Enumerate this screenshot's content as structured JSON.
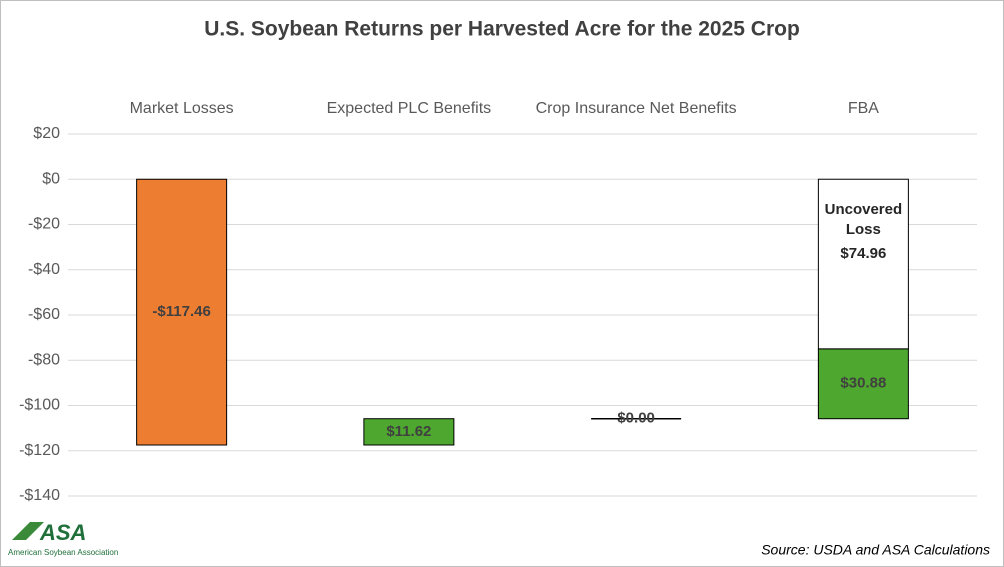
{
  "chart_data": {
    "type": "waterfall",
    "title": "U.S. Soybean Returns per Harvested Acre for the 2025 Crop",
    "categories": [
      "Market Losses",
      "Expected PLC Benefits",
      "Crop Insurance Net Benefits",
      "FBA"
    ],
    "values": [
      -117.46,
      11.62,
      0,
      30.88
    ],
    "value_labels": [
      "-$117.46",
      "$11.62",
      "$0.00",
      "$30.88"
    ],
    "colors": [
      "#ed7d31",
      "#4ea72e",
      "#4ea72e",
      "#4ea72e"
    ],
    "remainder": {
      "name": "Uncovered Loss",
      "value": 74.96,
      "value_label": "$74.96",
      "color": "#ffffff"
    },
    "ylim": [
      -140,
      20
    ],
    "yticks": [
      {
        "value": 20,
        "label": "$20"
      },
      {
        "value": 0,
        "label": "$0"
      },
      {
        "value": -20,
        "label": "-$20"
      },
      {
        "value": -40,
        "label": "-$40"
      },
      {
        "value": -60,
        "label": "-$60"
      },
      {
        "value": -80,
        "label": "-$80"
      },
      {
        "value": -100,
        "label": "-$100"
      },
      {
        "value": -120,
        "label": "-$120"
      },
      {
        "value": -140,
        "label": "-$140"
      }
    ],
    "grid": true,
    "source": "Source: USDA and ASA Calculations",
    "logo": {
      "mark": "ASA",
      "name": "American Soybean Association"
    }
  }
}
